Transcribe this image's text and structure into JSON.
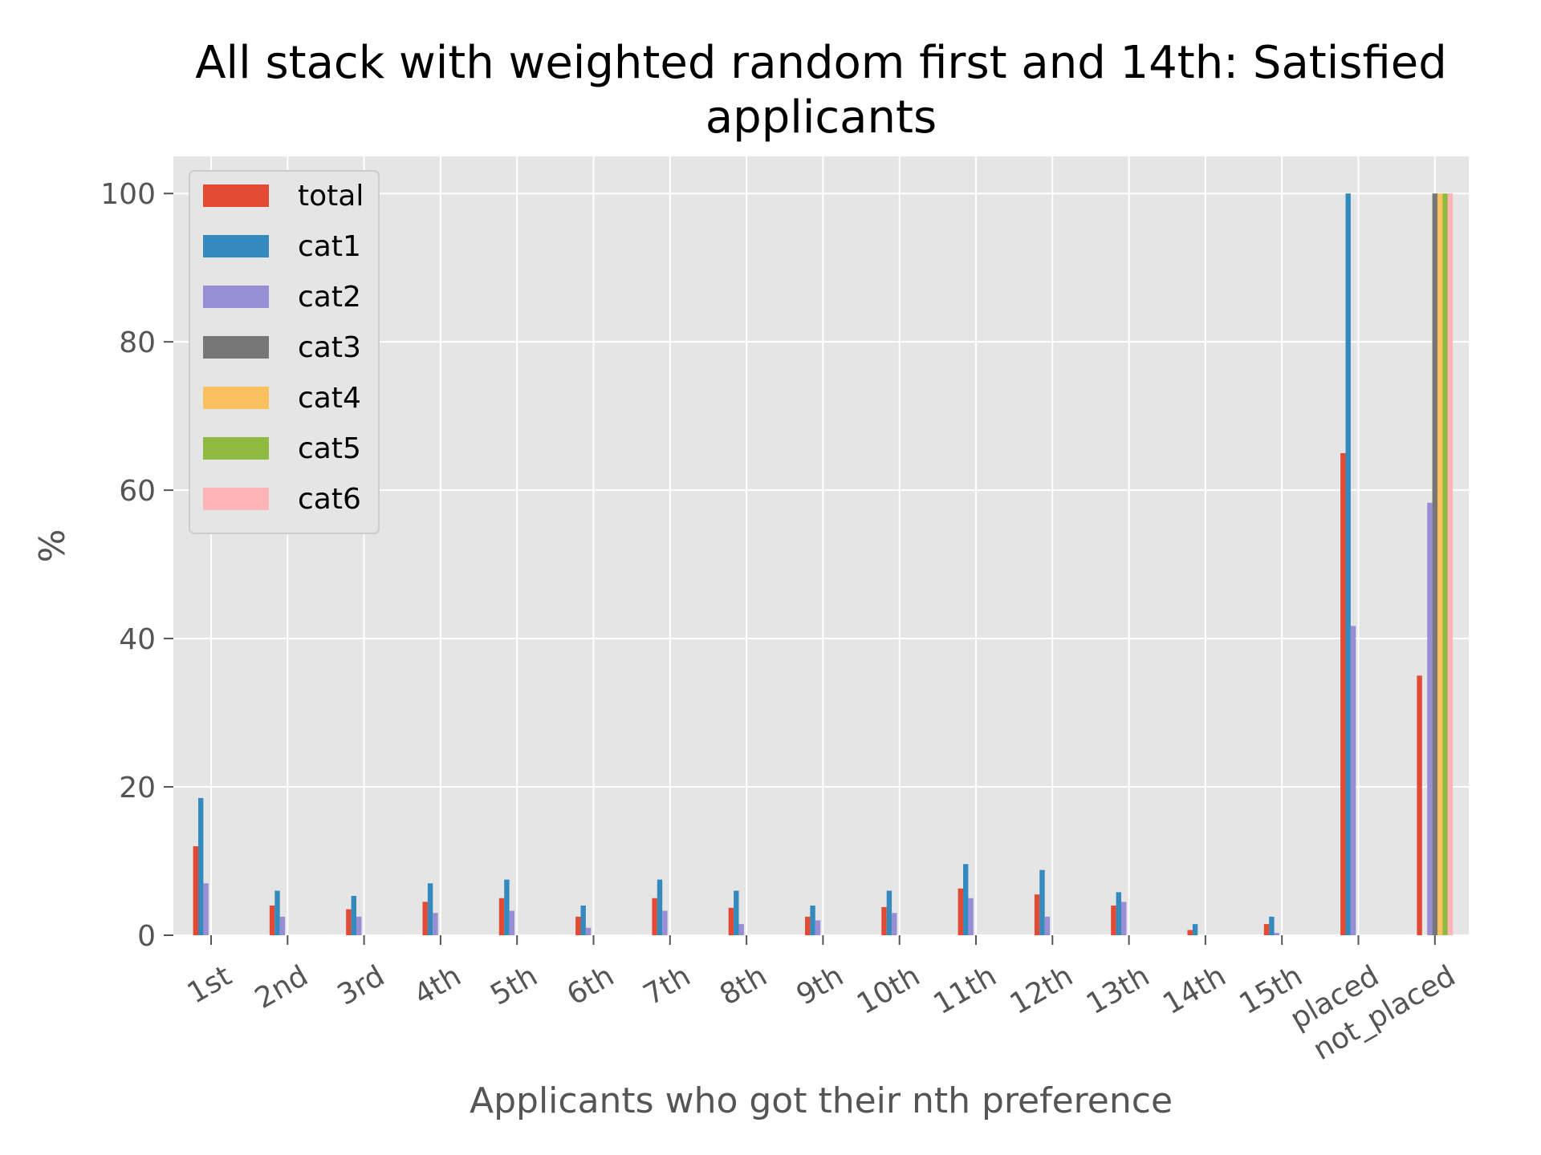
{
  "chart_data": {
    "type": "bar",
    "title_lines": [
      "All stack with weighted random first and 14th: Satisfied",
      "applicants"
    ],
    "xlabel": "Applicants who got their nth preference",
    "ylabel": "%",
    "ylim": [
      0,
      105
    ],
    "yticks": [
      0,
      20,
      40,
      60,
      80,
      100
    ],
    "grid": true,
    "legend_position": "upper-left",
    "categories": [
      "1st",
      "2nd",
      "3rd",
      "4th",
      "5th",
      "6th",
      "7th",
      "8th",
      "9th",
      "10th",
      "11th",
      "12th",
      "13th",
      "14th",
      "15th",
      "placed",
      "not_placed"
    ],
    "series": [
      {
        "name": "total",
        "color": "#E24A33",
        "values": [
          12,
          4,
          3.5,
          4.5,
          5,
          2.5,
          5,
          3.7,
          2.5,
          3.8,
          6.3,
          5.5,
          4,
          0.7,
          1.5,
          65,
          35
        ]
      },
      {
        "name": "cat1",
        "color": "#348ABD",
        "values": [
          18.5,
          6,
          5.3,
          7,
          7.5,
          4,
          7.5,
          6,
          4,
          6,
          9.6,
          8.8,
          5.8,
          1.5,
          2.5,
          100,
          0
        ]
      },
      {
        "name": "cat2",
        "color": "#988ED5",
        "values": [
          7,
          2.5,
          2.5,
          3,
          3.3,
          1,
          3.3,
          1.5,
          2,
          3,
          5,
          2.5,
          4.5,
          0,
          0.3,
          41.7,
          58.3
        ]
      },
      {
        "name": "cat3",
        "color": "#777777",
        "values": [
          0,
          0,
          0,
          0,
          0,
          0,
          0,
          0,
          0,
          0,
          0,
          0,
          0,
          0,
          0,
          0,
          100
        ]
      },
      {
        "name": "cat4",
        "color": "#FBC15E",
        "values": [
          0,
          0,
          0,
          0,
          0,
          0,
          0,
          0,
          0,
          0,
          0,
          0,
          0,
          0,
          0,
          0,
          100
        ]
      },
      {
        "name": "cat5",
        "color": "#8EBA42",
        "values": [
          0,
          0,
          0,
          0,
          0,
          0,
          0,
          0,
          0,
          0,
          0,
          0,
          0,
          0,
          0,
          0,
          100
        ]
      },
      {
        "name": "cat6",
        "color": "#FFB5B8",
        "values": [
          0,
          0,
          0,
          0,
          0,
          0,
          0,
          0,
          0,
          0,
          0,
          0,
          0,
          0,
          0,
          0,
          100
        ]
      }
    ],
    "colors": {
      "plot_background": "#E5E5E5",
      "grid": "#FFFFFF",
      "tick": "#555555"
    }
  }
}
